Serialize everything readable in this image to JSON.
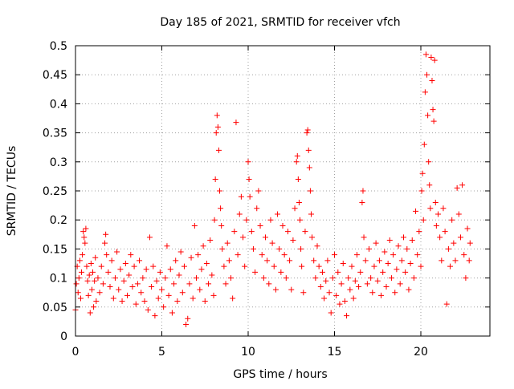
{
  "chart_data": {
    "type": "scatter",
    "title": "Day 185 of 2021, SRMTID for receiver vfch",
    "xlabel": "GPS time / hours",
    "ylabel": "SRMTID / TECUs",
    "xlim": [
      0,
      24
    ],
    "ylim": [
      0,
      0.5
    ],
    "xticks": [
      0,
      5,
      10,
      15,
      20
    ],
    "xtick_labels": [
      "0",
      "5",
      "10",
      "15",
      "20"
    ],
    "yticks": [
      0,
      0.05,
      0.1,
      0.15,
      0.2,
      0.25,
      0.3,
      0.35,
      0.4,
      0.45,
      0.5
    ],
    "ytick_labels": [
      "0",
      "0.05",
      "0.1",
      "0.15",
      "0.2",
      "0.25",
      "0.3",
      "0.35",
      "0.4",
      "0.45",
      "0.5"
    ],
    "grid": true,
    "marker": "+",
    "series": [
      {
        "name": "SRMTID",
        "color": "#ff0000",
        "points": [
          [
            0.0,
            0.045
          ],
          [
            0.05,
            0.09
          ],
          [
            0.1,
            0.12
          ],
          [
            0.15,
            0.075
          ],
          [
            0.2,
            0.1
          ],
          [
            0.25,
            0.13
          ],
          [
            0.3,
            0.065
          ],
          [
            0.35,
            0.11
          ],
          [
            0.4,
            0.14
          ],
          [
            0.45,
            0.18
          ],
          [
            0.5,
            0.17
          ],
          [
            0.55,
            0.16
          ],
          [
            0.6,
            0.185
          ],
          [
            0.65,
            0.12
          ],
          [
            0.7,
            0.095
          ],
          [
            0.75,
            0.07
          ],
          [
            0.8,
            0.105
          ],
          [
            0.85,
            0.04
          ],
          [
            0.9,
            0.125
          ],
          [
            0.95,
            0.08
          ],
          [
            1.0,
            0.11
          ],
          [
            1.05,
            0.05
          ],
          [
            1.1,
            0.095
          ],
          [
            1.15,
            0.135
          ],
          [
            1.2,
            0.06
          ],
          [
            1.3,
            0.1
          ],
          [
            1.4,
            0.075
          ],
          [
            1.5,
            0.12
          ],
          [
            1.6,
            0.09
          ],
          [
            1.7,
            0.16
          ],
          [
            1.75,
            0.175
          ],
          [
            1.8,
            0.14
          ],
          [
            1.9,
            0.11
          ],
          [
            2.0,
            0.085
          ],
          [
            2.1,
            0.13
          ],
          [
            2.2,
            0.065
          ],
          [
            2.3,
            0.1
          ],
          [
            2.4,
            0.145
          ],
          [
            2.5,
            0.08
          ],
          [
            2.6,
            0.115
          ],
          [
            2.7,
            0.06
          ],
          [
            2.8,
            0.095
          ],
          [
            2.9,
            0.125
          ],
          [
            3.0,
            0.07
          ],
          [
            3.1,
            0.105
          ],
          [
            3.2,
            0.14
          ],
          [
            3.3,
            0.085
          ],
          [
            3.4,
            0.12
          ],
          [
            3.5,
            0.055
          ],
          [
            3.6,
            0.09
          ],
          [
            3.7,
            0.13
          ],
          [
            3.8,
            0.075
          ],
          [
            3.9,
            0.1
          ],
          [
            4.0,
            0.06
          ],
          [
            4.1,
            0.115
          ],
          [
            4.2,
            0.045
          ],
          [
            4.3,
            0.17
          ],
          [
            4.4,
            0.085
          ],
          [
            4.5,
            0.12
          ],
          [
            4.6,
            0.035
          ],
          [
            4.7,
            0.095
          ],
          [
            4.8,
            0.065
          ],
          [
            4.9,
            0.11
          ],
          [
            5.0,
            0.08
          ],
          [
            5.1,
            0.05
          ],
          [
            5.2,
            0.1
          ],
          [
            5.3,
            0.155
          ],
          [
            5.4,
            0.07
          ],
          [
            5.5,
            0.115
          ],
          [
            5.6,
            0.04
          ],
          [
            5.7,
            0.09
          ],
          [
            5.8,
            0.13
          ],
          [
            5.9,
            0.06
          ],
          [
            6.0,
            0.105
          ],
          [
            6.1,
            0.145
          ],
          [
            6.2,
            0.075
          ],
          [
            6.3,
            0.12
          ],
          [
            6.4,
            0.02
          ],
          [
            6.5,
            0.03
          ],
          [
            6.6,
            0.09
          ],
          [
            6.7,
            0.135
          ],
          [
            6.8,
            0.065
          ],
          [
            6.9,
            0.19
          ],
          [
            7.0,
            0.1
          ],
          [
            7.1,
            0.14
          ],
          [
            7.2,
            0.08
          ],
          [
            7.3,
            0.115
          ],
          [
            7.4,
            0.155
          ],
          [
            7.5,
            0.06
          ],
          [
            7.6,
            0.125
          ],
          [
            7.7,
            0.09
          ],
          [
            7.8,
            0.165
          ],
          [
            7.9,
            0.105
          ],
          [
            8.0,
            0.07
          ],
          [
            8.05,
            0.2
          ],
          [
            8.1,
            0.27
          ],
          [
            8.15,
            0.35
          ],
          [
            8.2,
            0.38
          ],
          [
            8.25,
            0.36
          ],
          [
            8.3,
            0.32
          ],
          [
            8.35,
            0.25
          ],
          [
            8.4,
            0.22
          ],
          [
            8.45,
            0.19
          ],
          [
            8.5,
            0.15
          ],
          [
            8.6,
            0.12
          ],
          [
            8.7,
            0.09
          ],
          [
            8.8,
            0.16
          ],
          [
            8.9,
            0.13
          ],
          [
            9.0,
            0.1
          ],
          [
            9.1,
            0.065
          ],
          [
            9.2,
            0.18
          ],
          [
            9.3,
            0.368
          ],
          [
            9.4,
            0.14
          ],
          [
            9.5,
            0.21
          ],
          [
            9.6,
            0.24
          ],
          [
            9.7,
            0.17
          ],
          [
            9.8,
            0.12
          ],
          [
            9.9,
            0.2
          ],
          [
            10.0,
            0.3
          ],
          [
            10.05,
            0.27
          ],
          [
            10.1,
            0.24
          ],
          [
            10.2,
            0.18
          ],
          [
            10.3,
            0.15
          ],
          [
            10.4,
            0.11
          ],
          [
            10.5,
            0.22
          ],
          [
            10.6,
            0.25
          ],
          [
            10.7,
            0.19
          ],
          [
            10.8,
            0.14
          ],
          [
            10.9,
            0.1
          ],
          [
            11.0,
            0.17
          ],
          [
            11.1,
            0.13
          ],
          [
            11.2,
            0.09
          ],
          [
            11.3,
            0.2
          ],
          [
            11.4,
            0.16
          ],
          [
            11.5,
            0.12
          ],
          [
            11.6,
            0.08
          ],
          [
            11.7,
            0.21
          ],
          [
            11.8,
            0.15
          ],
          [
            11.9,
            0.11
          ],
          [
            12.0,
            0.19
          ],
          [
            12.1,
            0.14
          ],
          [
            12.2,
            0.1
          ],
          [
            12.3,
            0.18
          ],
          [
            12.4,
            0.13
          ],
          [
            12.5,
            0.08
          ],
          [
            12.6,
            0.165
          ],
          [
            12.7,
            0.22
          ],
          [
            12.8,
            0.3
          ],
          [
            12.85,
            0.31
          ],
          [
            12.9,
            0.27
          ],
          [
            12.95,
            0.23
          ],
          [
            13.0,
            0.2
          ],
          [
            13.05,
            0.15
          ],
          [
            13.1,
            0.12
          ],
          [
            13.2,
            0.075
          ],
          [
            13.3,
            0.18
          ],
          [
            13.4,
            0.35
          ],
          [
            13.45,
            0.355
          ],
          [
            13.5,
            0.32
          ],
          [
            13.55,
            0.29
          ],
          [
            13.6,
            0.25
          ],
          [
            13.65,
            0.21
          ],
          [
            13.7,
            0.17
          ],
          [
            13.8,
            0.13
          ],
          [
            13.9,
            0.1
          ],
          [
            14.0,
            0.155
          ],
          [
            14.1,
            0.12
          ],
          [
            14.2,
            0.085
          ],
          [
            14.3,
            0.11
          ],
          [
            14.4,
            0.065
          ],
          [
            14.5,
            0.095
          ],
          [
            14.6,
            0.13
          ],
          [
            14.7,
            0.075
          ],
          [
            14.8,
            0.04
          ],
          [
            14.9,
            0.1
          ],
          [
            15.0,
            0.14
          ],
          [
            15.1,
            0.07
          ],
          [
            15.2,
            0.11
          ],
          [
            15.3,
            0.055
          ],
          [
            15.4,
            0.09
          ],
          [
            15.5,
            0.125
          ],
          [
            15.6,
            0.06
          ],
          [
            15.7,
            0.035
          ],
          [
            15.8,
            0.1
          ],
          [
            15.9,
            0.08
          ],
          [
            16.0,
            0.12
          ],
          [
            16.1,
            0.065
          ],
          [
            16.2,
            0.095
          ],
          [
            16.3,
            0.14
          ],
          [
            16.4,
            0.085
          ],
          [
            16.5,
            0.11
          ],
          [
            16.6,
            0.23
          ],
          [
            16.65,
            0.25
          ],
          [
            16.7,
            0.17
          ],
          [
            16.8,
            0.13
          ],
          [
            16.9,
            0.09
          ],
          [
            17.0,
            0.15
          ],
          [
            17.1,
            0.1
          ],
          [
            17.2,
            0.075
          ],
          [
            17.3,
            0.12
          ],
          [
            17.4,
            0.16
          ],
          [
            17.5,
            0.095
          ],
          [
            17.6,
            0.13
          ],
          [
            17.7,
            0.07
          ],
          [
            17.8,
            0.11
          ],
          [
            17.9,
            0.145
          ],
          [
            18.0,
            0.085
          ],
          [
            18.1,
            0.125
          ],
          [
            18.2,
            0.165
          ],
          [
            18.3,
            0.1
          ],
          [
            18.4,
            0.14
          ],
          [
            18.5,
            0.075
          ],
          [
            18.6,
            0.115
          ],
          [
            18.7,
            0.155
          ],
          [
            18.8,
            0.09
          ],
          [
            18.9,
            0.13
          ],
          [
            19.0,
            0.17
          ],
          [
            19.1,
            0.11
          ],
          [
            19.2,
            0.15
          ],
          [
            19.3,
            0.08
          ],
          [
            19.4,
            0.125
          ],
          [
            19.5,
            0.165
          ],
          [
            19.6,
            0.1
          ],
          [
            19.7,
            0.215
          ],
          [
            19.8,
            0.14
          ],
          [
            19.9,
            0.18
          ],
          [
            20.0,
            0.12
          ],
          [
            20.05,
            0.25
          ],
          [
            20.1,
            0.28
          ],
          [
            20.15,
            0.2
          ],
          [
            20.2,
            0.33
          ],
          [
            20.25,
            0.42
          ],
          [
            20.3,
            0.485
          ],
          [
            20.35,
            0.45
          ],
          [
            20.4,
            0.38
          ],
          [
            20.45,
            0.3
          ],
          [
            20.5,
            0.26
          ],
          [
            20.55,
            0.22
          ],
          [
            20.6,
            0.48
          ],
          [
            20.65,
            0.44
          ],
          [
            20.7,
            0.39
          ],
          [
            20.75,
            0.37
          ],
          [
            20.8,
            0.475
          ],
          [
            20.85,
            0.23
          ],
          [
            20.9,
            0.19
          ],
          [
            21.0,
            0.21
          ],
          [
            21.1,
            0.17
          ],
          [
            21.2,
            0.13
          ],
          [
            21.3,
            0.22
          ],
          [
            21.4,
            0.18
          ],
          [
            21.5,
            0.055
          ],
          [
            21.6,
            0.15
          ],
          [
            21.7,
            0.12
          ],
          [
            21.8,
            0.2
          ],
          [
            21.9,
            0.16
          ],
          [
            22.0,
            0.13
          ],
          [
            22.1,
            0.255
          ],
          [
            22.2,
            0.21
          ],
          [
            22.3,
            0.17
          ],
          [
            22.4,
            0.26
          ],
          [
            22.5,
            0.14
          ],
          [
            22.6,
            0.1
          ],
          [
            22.7,
            0.185
          ],
          [
            22.8,
            0.13
          ],
          [
            22.85,
            0.16
          ]
        ]
      }
    ]
  }
}
